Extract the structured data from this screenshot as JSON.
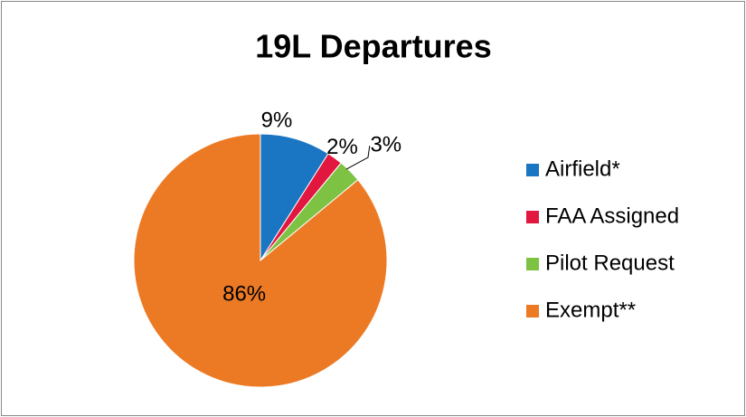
{
  "chart_data": {
    "type": "pie",
    "title": "19L Departures",
    "categories": [
      "Airfield*",
      "FAA Assigned",
      "Pilot Request",
      "Exempt**"
    ],
    "values": [
      9,
      2,
      3,
      86
    ],
    "value_labels": [
      "9%",
      "2%",
      "3%",
      "86%"
    ],
    "colors": [
      "#1a75c2",
      "#e2173f",
      "#7dc242",
      "#ec7a25"
    ],
    "legend": "right"
  }
}
